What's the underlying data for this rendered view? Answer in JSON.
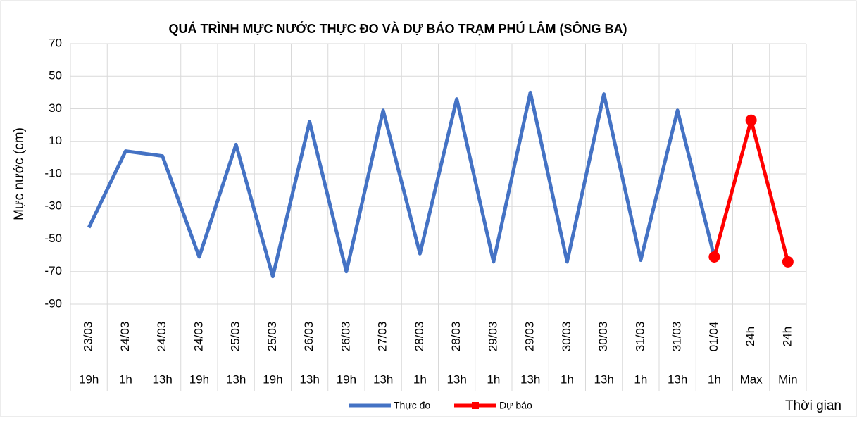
{
  "chart_data": {
    "type": "line",
    "title": "QUÁ TRÌNH MỰC NƯỚC THỰC ĐO VÀ DỰ BÁO TRẠM PHÚ LÂM (SÔNG BA)",
    "y_label": "Mực nước (cm)",
    "x_label": "Thời gian",
    "categories": [
      "23/03",
      "24/03",
      "24/03",
      "24/03",
      "25/03",
      "25/03",
      "26/03",
      "26/03",
      "27/03",
      "28/03",
      "28/03",
      "29/03",
      "29/03",
      "30/03",
      "30/03",
      "31/03",
      "31/03",
      "01/04",
      "24h",
      "24h"
    ],
    "category_times": [
      "19h",
      "1h",
      "13h",
      "19h",
      "13h",
      "19h",
      "13h",
      "19h",
      "13h",
      "1h",
      "13h",
      "1h",
      "13h",
      "1h",
      "13h",
      "1h",
      "13h",
      "1h",
      "Max",
      "Min"
    ],
    "series": [
      {
        "name": "Thực đo",
        "color": "#4472c4",
        "values": [
          -43,
          4,
          1,
          -61,
          8,
          -73,
          22,
          -70,
          29,
          -59,
          36,
          -64,
          40,
          -64,
          39,
          -63,
          29,
          -61,
          null,
          null
        ]
      },
      {
        "name": "Dự báo",
        "color": "#ff0000",
        "values": [
          null,
          null,
          null,
          null,
          null,
          null,
          null,
          null,
          null,
          null,
          null,
          null,
          null,
          null,
          null,
          null,
          null,
          -61,
          23,
          -64
        ]
      }
    ],
    "ylim": [
      -90,
      70
    ],
    "yticks": [
      -90,
      -70,
      -50,
      -30,
      -10,
      10,
      30,
      50,
      70
    ],
    "grid": true,
    "legend": "bottom"
  }
}
